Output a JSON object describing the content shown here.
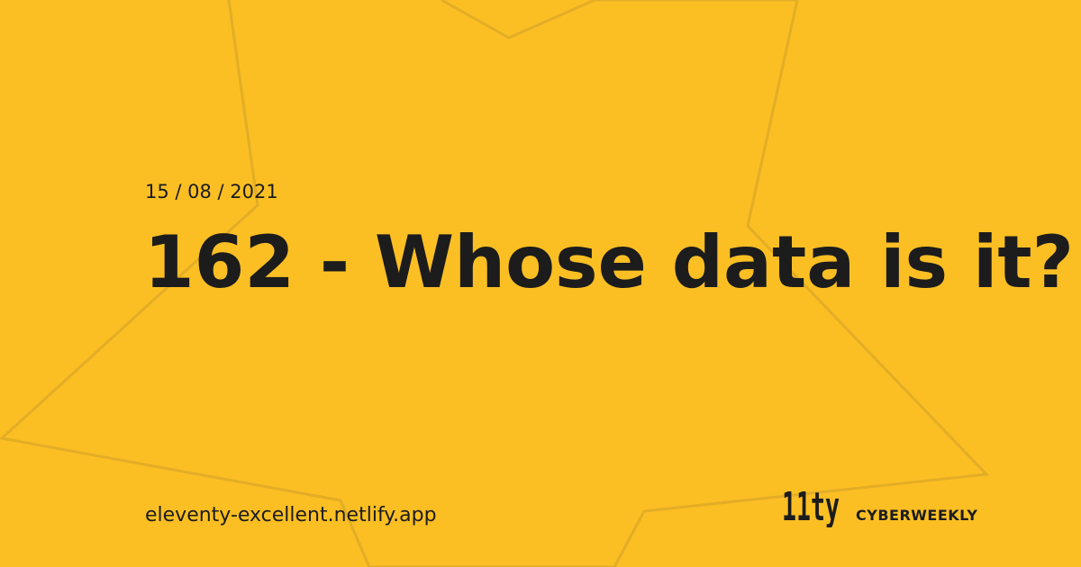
{
  "post": {
    "date": "15 / 08 / 2021",
    "title": "162 - Whose data is it?"
  },
  "footer": {
    "site_url": "eleventy-excellent.netlify.app",
    "logo_text": "11ty",
    "brand_name": "CYBERWEEKLY"
  },
  "colors": {
    "background": "#FBBF24",
    "text": "#1C1C1C",
    "star_outline": "#E3AD26"
  },
  "icons": {
    "background_decoration": "star-outline-icon",
    "logo": "eleventy-logo-icon"
  }
}
